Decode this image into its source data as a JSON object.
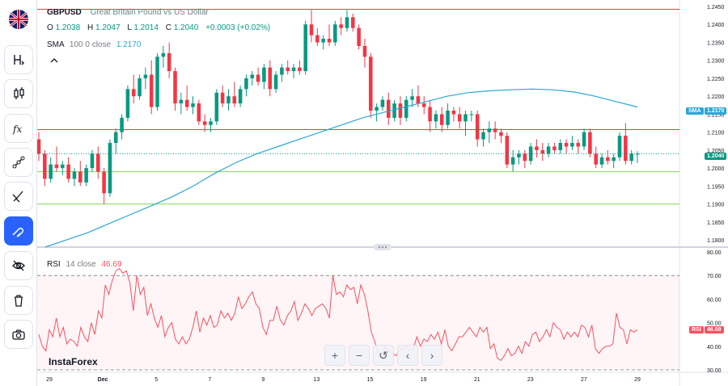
{
  "sidebar": {
    "items": [
      {
        "name": "flag-gbp-usd"
      },
      {
        "name": "indicators-button",
        "icon": "H-arrow-icon"
      },
      {
        "name": "chart-type-button",
        "icon": "candles-icon"
      },
      {
        "name": "functions-button",
        "icon": "fx-icon"
      },
      {
        "name": "drawing-tools-button",
        "icon": "trendline-icon"
      },
      {
        "name": "brush-tools-button",
        "icon": "brush-icon"
      },
      {
        "name": "magnet-button",
        "icon": "magnet-icon",
        "active": true
      },
      {
        "name": "hide-drawings-button",
        "icon": "eye-off-icon"
      },
      {
        "name": "alerts-button",
        "icon": "trash-alert-icon"
      },
      {
        "name": "snapshot-button",
        "icon": "camera-icon"
      }
    ]
  },
  "legend": {
    "symbol": "GBPUSD",
    "description": "Great Britain Pound vs US Dollar",
    "o_label": "O",
    "o_value": "1.2038",
    "h_label": "H",
    "h_value": "1.2047",
    "l_label": "L",
    "l_value": "1.2014",
    "c_label": "C",
    "c_value": "1.2040",
    "change": "+0.0003 (+0.02%)",
    "collapse": "^"
  },
  "sma": {
    "label": "SMA",
    "params": "100 0 close",
    "value": "1.2170",
    "tag": "SMA"
  },
  "rsi": {
    "label": "RSI",
    "params": "14 close",
    "value": "46.69",
    "tag": "RSI"
  },
  "last_price": "1.2040",
  "watermark": "InstaForex",
  "zoom_controls": {
    "zoom_in": "+",
    "zoom_out": "−",
    "reset": "↺",
    "scroll_left": "‹",
    "scroll_right": "›"
  },
  "colors": {
    "up": "#089981",
    "down": "#f23645",
    "sma": "#2aa7d4",
    "rsi": "#f7525f",
    "resistance": "#f23645",
    "support": "#7ed957"
  },
  "chart_data": [
    {
      "type": "candlestick",
      "title": "GBPUSD",
      "price_axis": [
        "1.2450",
        "1.2400",
        "1.2350",
        "1.2300",
        "1.2250",
        "1.2200",
        "1.2150",
        "1.2100",
        "1.2050",
        "1.2000",
        "1.1950",
        "1.1900",
        "1.1850",
        "1.1800"
      ],
      "ylim": [
        1.178,
        1.245
      ],
      "x_ticks": [
        "29",
        "Dec",
        "5",
        "7",
        "9",
        "13",
        "15",
        "19",
        "21",
        "23",
        "27",
        "29"
      ],
      "horizontal_lines": [
        1.2442,
        1.2107,
        1.199,
        1.19
      ],
      "candles": [
        [
          1.208,
          1.21,
          1.202,
          1.204
        ],
        [
          1.204,
          1.205,
          1.195,
          1.197
        ],
        [
          1.197,
          1.203,
          1.196,
          1.201
        ],
        [
          1.201,
          1.206,
          1.199,
          1.2
        ],
        [
          1.2,
          1.202,
          1.198,
          1.201
        ],
        [
          1.201,
          1.203,
          1.196,
          1.197
        ],
        [
          1.197,
          1.2,
          1.195,
          1.199
        ],
        [
          1.199,
          1.202,
          1.195,
          1.196
        ],
        [
          1.196,
          1.201,
          1.195,
          1.2
        ],
        [
          1.2,
          1.205,
          1.199,
          1.204
        ],
        [
          1.204,
          1.206,
          1.197,
          1.199
        ],
        [
          1.199,
          1.2,
          1.19,
          1.193
        ],
        [
          1.193,
          1.208,
          1.192,
          1.207
        ],
        [
          1.207,
          1.211,
          1.204,
          1.21
        ],
        [
          1.21,
          1.215,
          1.208,
          1.214
        ],
        [
          1.214,
          1.223,
          1.213,
          1.222
        ],
        [
          1.222,
          1.226,
          1.218,
          1.22
        ],
        [
          1.22,
          1.226,
          1.219,
          1.225
        ],
        [
          1.225,
          1.228,
          1.222,
          1.226
        ],
        [
          1.226,
          1.23,
          1.215,
          1.217
        ],
        [
          1.217,
          1.232,
          1.216,
          1.231
        ],
        [
          1.231,
          1.234,
          1.228,
          1.232
        ],
        [
          1.232,
          1.235,
          1.225,
          1.227
        ],
        [
          1.227,
          1.228,
          1.216,
          1.218
        ],
        [
          1.218,
          1.221,
          1.215,
          1.219
        ],
        [
          1.219,
          1.223,
          1.216,
          1.217
        ],
        [
          1.217,
          1.22,
          1.215,
          1.218
        ],
        [
          1.218,
          1.219,
          1.212,
          1.213
        ],
        [
          1.213,
          1.215,
          1.21,
          1.212
        ],
        [
          1.212,
          1.214,
          1.21,
          1.213
        ],
        [
          1.213,
          1.222,
          1.212,
          1.221
        ],
        [
          1.221,
          1.223,
          1.217,
          1.218
        ],
        [
          1.218,
          1.222,
          1.216,
          1.22
        ],
        [
          1.22,
          1.224,
          1.217,
          1.218
        ],
        [
          1.218,
          1.223,
          1.217,
          1.222
        ],
        [
          1.222,
          1.226,
          1.22,
          1.225
        ],
        [
          1.225,
          1.227,
          1.223,
          1.226
        ],
        [
          1.226,
          1.228,
          1.223,
          1.224
        ],
        [
          1.224,
          1.229,
          1.222,
          1.228
        ],
        [
          1.228,
          1.23,
          1.22,
          1.222
        ],
        [
          1.222,
          1.227,
          1.221,
          1.226
        ],
        [
          1.226,
          1.229,
          1.224,
          1.228
        ],
        [
          1.228,
          1.23,
          1.226,
          1.227
        ],
        [
          1.227,
          1.229,
          1.225,
          1.228
        ],
        [
          1.228,
          1.23,
          1.226,
          1.227
        ],
        [
          1.227,
          1.241,
          1.226,
          1.24
        ],
        [
          1.24,
          1.244,
          1.235,
          1.237
        ],
        [
          1.237,
          1.239,
          1.234,
          1.235
        ],
        [
          1.235,
          1.237,
          1.233,
          1.236
        ],
        [
          1.236,
          1.24,
          1.234,
          1.235
        ],
        [
          1.235,
          1.241,
          1.234,
          1.24
        ],
        [
          1.24,
          1.242,
          1.237,
          1.239
        ],
        [
          1.239,
          1.244,
          1.238,
          1.242
        ],
        [
          1.242,
          1.243,
          1.238,
          1.239
        ],
        [
          1.239,
          1.24,
          1.233,
          1.234
        ],
        [
          1.234,
          1.236,
          1.228,
          1.231
        ],
        [
          1.231,
          1.232,
          1.214,
          1.216
        ],
        [
          1.216,
          1.218,
          1.213,
          1.217
        ],
        [
          1.217,
          1.22,
          1.216,
          1.219
        ],
        [
          1.219,
          1.221,
          1.212,
          1.214
        ],
        [
          1.214,
          1.219,
          1.213,
          1.218
        ],
        [
          1.218,
          1.22,
          1.212,
          1.214
        ],
        [
          1.214,
          1.22,
          1.213,
          1.219
        ],
        [
          1.219,
          1.222,
          1.217,
          1.22
        ],
        [
          1.22,
          1.223,
          1.217,
          1.218
        ],
        [
          1.218,
          1.22,
          1.215,
          1.217
        ],
        [
          1.217,
          1.219,
          1.21,
          1.213
        ],
        [
          1.213,
          1.216,
          1.211,
          1.215
        ],
        [
          1.215,
          1.217,
          1.21,
          1.212
        ],
        [
          1.212,
          1.218,
          1.211,
          1.216
        ],
        [
          1.216,
          1.217,
          1.213,
          1.215
        ],
        [
          1.215,
          1.217,
          1.211,
          1.213
        ],
        [
          1.213,
          1.216,
          1.209,
          1.215
        ],
        [
          1.215,
          1.216,
          1.213,
          1.215
        ],
        [
          1.215,
          1.216,
          1.206,
          1.208
        ],
        [
          1.208,
          1.211,
          1.206,
          1.21
        ],
        [
          1.21,
          1.213,
          1.207,
          1.211
        ],
        [
          1.211,
          1.213,
          1.208,
          1.21
        ],
        [
          1.21,
          1.211,
          1.207,
          1.209
        ],
        [
          1.209,
          1.21,
          1.2,
          1.201
        ],
        [
          1.201,
          1.205,
          1.199,
          1.203
        ],
        [
          1.203,
          1.205,
          1.201,
          1.204
        ],
        [
          1.204,
          1.205,
          1.2,
          1.202
        ],
        [
          1.202,
          1.207,
          1.201,
          1.206
        ],
        [
          1.206,
          1.208,
          1.203,
          1.205
        ],
        [
          1.205,
          1.207,
          1.202,
          1.204
        ],
        [
          1.204,
          1.207,
          1.203,
          1.206
        ],
        [
          1.206,
          1.207,
          1.204,
          1.205
        ],
        [
          1.205,
          1.208,
          1.204,
          1.207
        ],
        [
          1.207,
          1.208,
          1.204,
          1.206
        ],
        [
          1.206,
          1.209,
          1.205,
          1.207
        ],
        [
          1.207,
          1.208,
          1.204,
          1.206
        ],
        [
          1.206,
          1.211,
          1.205,
          1.21
        ],
        [
          1.21,
          1.211,
          1.203,
          1.204
        ],
        [
          1.204,
          1.206,
          1.2,
          1.201
        ],
        [
          1.201,
          1.204,
          1.2,
          1.203
        ],
        [
          1.203,
          1.205,
          1.201,
          1.202
        ],
        [
          1.202,
          1.204,
          1.2,
          1.203
        ],
        [
          1.203,
          1.21,
          1.202,
          1.209
        ],
        [
          1.209,
          1.2125,
          1.201,
          1.202
        ],
        [
          1.202,
          1.205,
          1.201,
          1.204
        ],
        [
          1.2038,
          1.2047,
          1.2014,
          1.204
        ]
      ],
      "sma": [
        1.178,
        1.18,
        1.182,
        1.1845,
        1.187,
        1.1895,
        1.192,
        1.195,
        1.1985,
        1.2015,
        1.204,
        1.206,
        1.208,
        1.21,
        1.212,
        1.214,
        1.2155,
        1.217,
        1.2185,
        1.22,
        1.221,
        1.2215,
        1.2218,
        1.222,
        1.2218,
        1.2212,
        1.22,
        1.2185,
        1.217
      ]
    },
    {
      "type": "line",
      "title": "RSI",
      "ylim": [
        30,
        80
      ],
      "price_axis": [
        "80.00",
        "70.00",
        "60.00",
        "50.00",
        "40.00",
        "30.00"
      ],
      "bands": [
        70,
        30
      ],
      "values": [
        45,
        40,
        38,
        47,
        44,
        52,
        44,
        48,
        41,
        43,
        42,
        40,
        48,
        44,
        42,
        50,
        45,
        55,
        52,
        66,
        62,
        68,
        72,
        73,
        71,
        72,
        67,
        55,
        70,
        62,
        65,
        53,
        58,
        52,
        48,
        53,
        44,
        48,
        50,
        43,
        41,
        44,
        41,
        43,
        48,
        55,
        46,
        52,
        49,
        53,
        48,
        49,
        55,
        52,
        54,
        51,
        54,
        61,
        56,
        58,
        61,
        63,
        58,
        56,
        48,
        45,
        51,
        51,
        57,
        51,
        49,
        53,
        55,
        59,
        51,
        54,
        58,
        56,
        53,
        56,
        57,
        58,
        56,
        52,
        70,
        62,
        63,
        61,
        66,
        64,
        65,
        58,
        66,
        62,
        55,
        46,
        42,
        37,
        35,
        40,
        38,
        37,
        36,
        38,
        39,
        40,
        38,
        39,
        44,
        40,
        43,
        42,
        45,
        43,
        46,
        41,
        47,
        40,
        38,
        41,
        44,
        44,
        46,
        48,
        46,
        44,
        48,
        46,
        48,
        39,
        41,
        35,
        34,
        36,
        39,
        36,
        37,
        40,
        37,
        42,
        40,
        45,
        46,
        42,
        44,
        47,
        44,
        50,
        48,
        47,
        43,
        46,
        44,
        46,
        44,
        49,
        48,
        44,
        49,
        39,
        37,
        39,
        40,
        40,
        41,
        54,
        48,
        47,
        41,
        47,
        46,
        47
      ]
    }
  ]
}
